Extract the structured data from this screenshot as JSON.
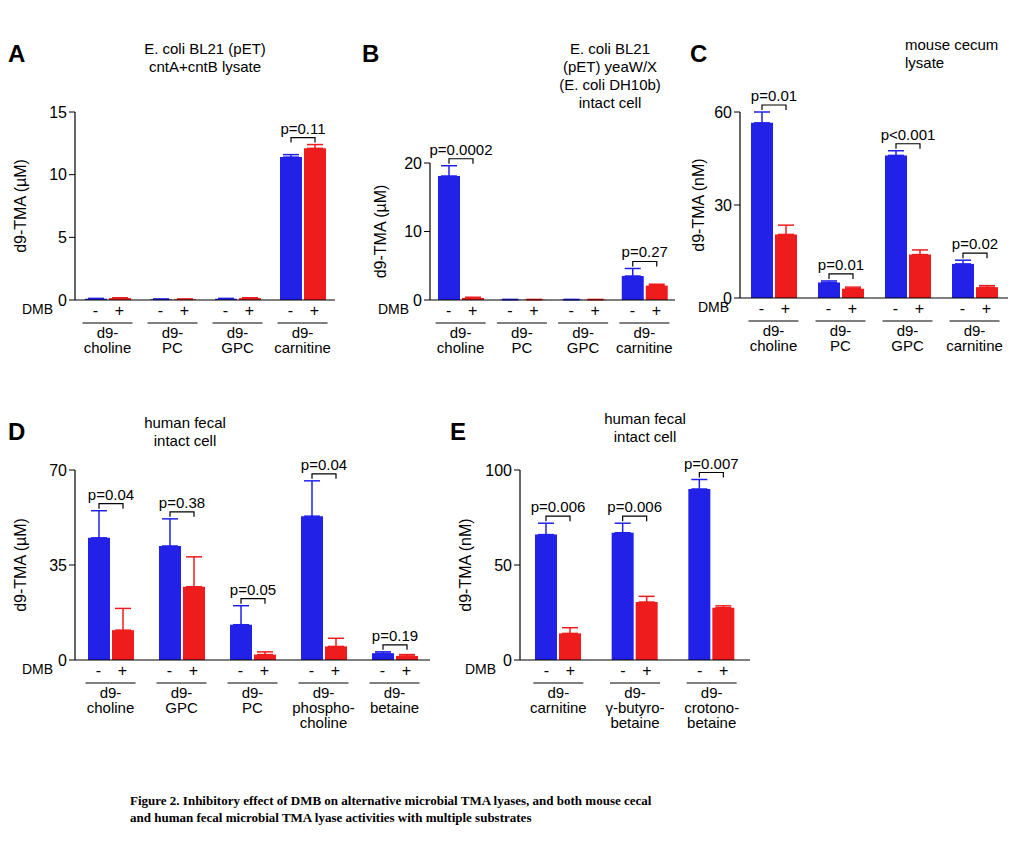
{
  "chart_data": [
    {
      "type": "bar",
      "panel": "A",
      "title": [
        "E. coli BL21 (pET)",
        "cntA+cntB lysate"
      ],
      "y_label": "d9-TMA (µM)",
      "x_label": "DMB",
      "categories": [
        "d9-\ncholine",
        "d9-\nPC",
        "d9-\nGPC",
        "d9-\ncarnitine"
      ],
      "series": [
        {
          "name": "-",
          "color": "#2121e8",
          "values": [
            0.1,
            0.05,
            0.1,
            11.4
          ],
          "errors": [
            0.03,
            0.03,
            0.03,
            0.2
          ]
        },
        {
          "name": "+",
          "color": "#ee1c1c",
          "values": [
            0.15,
            0.05,
            0.15,
            12.1
          ],
          "errors": [
            0.03,
            0.03,
            0.03,
            0.3
          ]
        }
      ],
      "annotations": [
        null,
        null,
        null,
        "p=0.11"
      ],
      "ylim": [
        0,
        15
      ],
      "yticks": [
        0,
        5,
        10,
        15
      ]
    },
    {
      "type": "bar",
      "panel": "B",
      "title": [
        "E. coli BL21",
        "(pET) yeaW/X",
        "(E. coli DH10b)",
        "intact cell"
      ],
      "y_label": "d9-TMA (µM)",
      "x_label": "DMB",
      "categories": [
        "d9-\ncholine",
        "d9-\nPC",
        "d9-\nGPC",
        "d9-\ncarnitine"
      ],
      "series": [
        {
          "name": "-",
          "color": "#2121e8",
          "values": [
            18.1,
            0.05,
            0.05,
            3.5
          ],
          "errors": [
            1.5,
            0.03,
            0.03,
            1.1
          ]
        },
        {
          "name": "+",
          "color": "#ee1c1c",
          "values": [
            0.3,
            0.05,
            0.05,
            2.1
          ],
          "errors": [
            0.1,
            0.03,
            0.03,
            0.2
          ]
        }
      ],
      "annotations": [
        "p=0.0002",
        null,
        null,
        "p=0.27"
      ],
      "ylim": [
        0,
        20
      ],
      "yticks": [
        0,
        10,
        20
      ]
    },
    {
      "type": "bar",
      "panel": "C",
      "title": [
        "mouse cecum",
        "lysate"
      ],
      "y_label": "d9-TMA (nM)",
      "x_label": "DMB",
      "categories": [
        "d9-\ncholine",
        "d9-\nPC",
        "d9-\nGPC",
        "d9-\ncarnitine"
      ],
      "series": [
        {
          "name": "-",
          "color": "#2121e8",
          "values": [
            56.5,
            5,
            46,
            11
          ],
          "errors": [
            3.5,
            0.5,
            1.5,
            1.2
          ]
        },
        {
          "name": "+",
          "color": "#ee1c1c",
          "values": [
            20.5,
            3,
            14,
            3.5
          ],
          "errors": [
            3,
            0.5,
            1.5,
            0.5
          ]
        }
      ],
      "annotations": [
        "p=0.01",
        "p=0.01",
        "p<0.001",
        "p=0.02"
      ],
      "ylim": [
        0,
        60
      ],
      "yticks": [
        0,
        30,
        60
      ]
    },
    {
      "type": "bar",
      "panel": "D",
      "title": [
        "human fecal",
        "intact cell"
      ],
      "y_label": "d9-TMA (µM)",
      "x_label": "DMB",
      "categories": [
        "d9-\ncholine",
        "d9-\nGPC",
        "d9-\nPC",
        "d9-\nphospho-\ncholine",
        "d9-\nbetaine"
      ],
      "series": [
        {
          "name": "-",
          "color": "#2121e8",
          "values": [
            45,
            42,
            13,
            53,
            2.5
          ],
          "errors": [
            10,
            10,
            7,
            13,
            0.5
          ]
        },
        {
          "name": "+",
          "color": "#ee1c1c",
          "values": [
            11,
            27,
            2,
            5,
            1.5
          ],
          "errors": [
            8,
            11,
            1,
            3,
            0.5
          ]
        }
      ],
      "annotations": [
        "p=0.04",
        "p=0.38",
        "p=0.05",
        "p=0.04",
        "p=0.19"
      ],
      "ylim": [
        0,
        70
      ],
      "yticks": [
        0,
        35,
        70
      ]
    },
    {
      "type": "bar",
      "panel": "E",
      "title": [
        "human fecal",
        "intact cell"
      ],
      "y_label": "d9-TMA (nM)",
      "x_label": "DMB",
      "categories": [
        "d9-\ncarnitine",
        "d9-\nγ-butyro-\nbetaine",
        "d9-\ncrotono-\nbetaine"
      ],
      "series": [
        {
          "name": "-",
          "color": "#2121e8",
          "values": [
            66,
            67,
            90
          ],
          "errors": [
            6,
            5,
            5
          ]
        },
        {
          "name": "+",
          "color": "#ee1c1c",
          "values": [
            14,
            30.5,
            27.5
          ],
          "errors": [
            3,
            3,
            1
          ]
        }
      ],
      "annotations": [
        "p=0.006",
        "p=0.006",
        "p=0.007"
      ],
      "ylim": [
        0,
        100
      ],
      "yticks": [
        0,
        50,
        100
      ]
    }
  ],
  "caption": [
    "Figure 2. Inhibitory effect of DMB on alternative microbial TMA lyases, and both mouse cecal",
    "and human fecal microbial TMA lyase activities with multiple substrates"
  ]
}
